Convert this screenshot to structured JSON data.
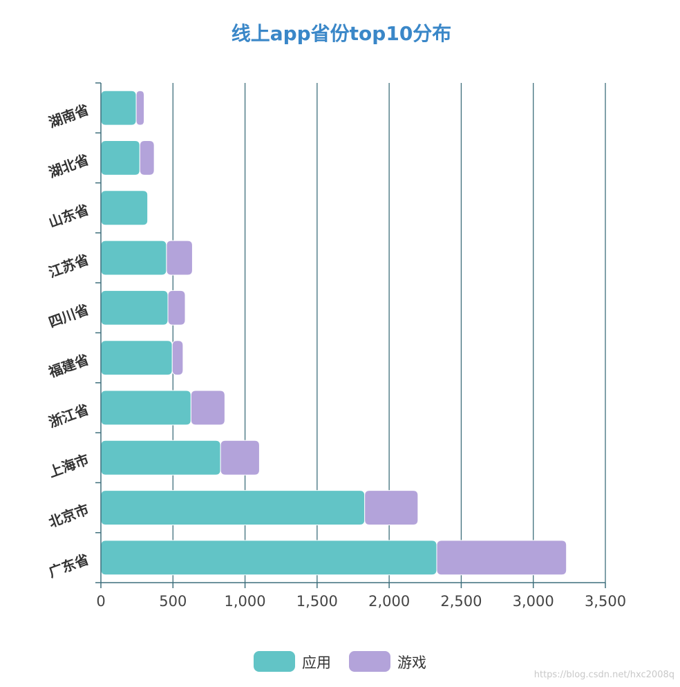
{
  "chart_data": {
    "type": "bar",
    "orientation": "horizontal",
    "stacked": true,
    "title": "线上app省份top10分布",
    "categories": [
      "广东省",
      "北京市",
      "上海市",
      "浙江省",
      "福建省",
      "四川省",
      "江苏省",
      "山东省",
      "湖北省",
      "湖南省"
    ],
    "series": [
      {
        "name": "应用",
        "values": [
          2330,
          1830,
          830,
          625,
          495,
          465,
          455,
          325,
          270,
          245
        ]
      },
      {
        "name": "游戏",
        "values": [
          900,
          370,
          270,
          235,
          75,
          120,
          180,
          5,
          100,
          55
        ]
      }
    ],
    "xlim": [
      0,
      3500
    ],
    "xticks": [
      0,
      500,
      1000,
      1500,
      2000,
      2500,
      3000,
      3500
    ],
    "xtick_labels": [
      "0",
      "500",
      "1,000",
      "1,500",
      "2,000",
      "2,500",
      "3,000",
      "3,500"
    ],
    "grid": true,
    "legend_position": "bottom-center",
    "colors": {
      "title": "#3a87c8",
      "应用": "#62c4c6",
      "游戏": "#b3a3da",
      "axis": "#3d6e7b",
      "grid": "#3d6e7b"
    }
  },
  "watermark": "https://blog.csdn.net/hxc2008q"
}
